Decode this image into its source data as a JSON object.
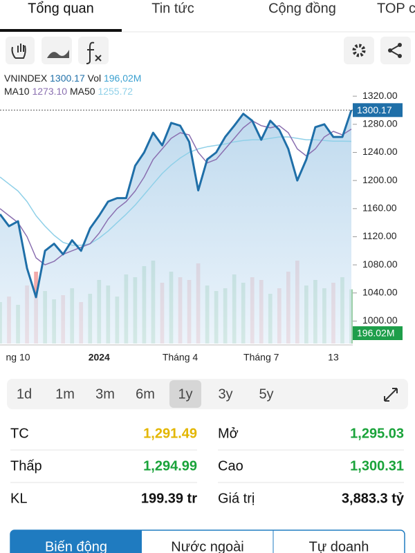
{
  "tabs": [
    "Tổng quan",
    "Tin tức",
    "Cộng đồng",
    "TOP c"
  ],
  "legend": {
    "symbol": "VNINDEX",
    "price": "1300.17",
    "vol_label": "Vol",
    "vol": "196,02M",
    "ma10_label": "MA10",
    "ma10": "1273.10",
    "ma50_label": "MA50",
    "ma50": "1255.72"
  },
  "chart_data": {
    "type": "line",
    "categories": [
      null,
      null,
      "ng 10",
      null,
      null,
      null,
      null,
      null,
      null,
      null,
      null,
      "2024",
      null,
      null,
      null,
      null,
      null,
      null,
      null,
      null,
      "Tháng 4",
      null,
      null,
      null,
      null,
      null,
      null,
      null,
      null,
      "Tháng 7",
      null,
      null,
      null,
      null,
      null,
      null,
      null,
      "13",
      null,
      null
    ],
    "series": [
      {
        "name": "VNINDEX",
        "color": "#1f6fa8",
        "values": [
          1152,
          1135,
          1142,
          1075,
          1034,
          1100,
          1110,
          1095,
          1115,
          1100,
          1132,
          1150,
          1170,
          1175,
          1175,
          1221,
          1240,
          1268,
          1250,
          1282,
          1278,
          1255,
          1186,
          1230,
          1240,
          1262,
          1278,
          1295,
          1285,
          1258,
          1285,
          1272,
          1245,
          1200,
          1230,
          1276,
          1280,
          1262,
          1262,
          1300.17
        ]
      },
      {
        "name": "MA10",
        "color": "#8a6fb0",
        "values": [
          1160,
          1150,
          1140,
          1120,
          1090,
          1080,
          1085,
          1095,
          1100,
          1105,
          1110,
          1125,
          1145,
          1160,
          1170,
          1185,
          1205,
          1230,
          1245,
          1260,
          1268,
          1265,
          1240,
          1225,
          1230,
          1245,
          1260,
          1275,
          1285,
          1278,
          1275,
          1278,
          1268,
          1245,
          1235,
          1245,
          1262,
          1270,
          1265,
          1273.1
        ]
      },
      {
        "name": "MA50",
        "color": "#8fd0e8",
        "values": [
          1205,
          1195,
          1185,
          1170,
          1150,
          1135,
          1122,
          1112,
          1108,
          1108,
          1110,
          1118,
          1128,
          1140,
          1152,
          1165,
          1180,
          1195,
          1210,
          1222,
          1232,
          1240,
          1245,
          1248,
          1250,
          1252,
          1255,
          1257,
          1258,
          1258,
          1260,
          1262,
          1262,
          1260,
          1258,
          1258,
          1257,
          1256,
          1256,
          1255.72
        ]
      }
    ],
    "volume": {
      "values": [
        150,
        170,
        140,
        210,
        260,
        190,
        160,
        175,
        200,
        150,
        180,
        230,
        210,
        170,
        250,
        240,
        280,
        300,
        220,
        260,
        240,
        230,
        290,
        210,
        190,
        200,
        250,
        220,
        240,
        230,
        180,
        200,
        260,
        300,
        210,
        230,
        200,
        220,
        240,
        196.02
      ],
      "up_color": "#9ccfa8",
      "down_color": "#f2aaaa",
      "label": "196.02M",
      "label_color": "#1e9e4a"
    },
    "ylim": [
      968,
      1329
    ],
    "yticks": [
      {
        "value": 1000,
        "label": "1000.00"
      },
      {
        "value": 1040,
        "label": "1040.00"
      },
      {
        "value": 1080,
        "label": "1080.00"
      },
      {
        "value": 1120,
        "label": "1120.00"
      },
      {
        "value": 1160,
        "label": "1160.00"
      },
      {
        "value": 1200,
        "label": "1200.00"
      },
      {
        "value": 1240,
        "label": "1240.00"
      },
      {
        "value": 1280,
        "label": "1280.00"
      },
      {
        "value": 1320,
        "label": "1320.00"
      }
    ]
  },
  "periods": [
    "1d",
    "1m",
    "3m",
    "6m",
    "1y",
    "3y",
    "5y"
  ],
  "selected_period": 4,
  "stats": [
    {
      "label": "TC",
      "value": "1,291.49",
      "color": "#e3b600"
    },
    {
      "label": "Mở",
      "value": "1,295.03",
      "color": "#1aa33a"
    },
    {
      "label": "Thấp",
      "value": "1,294.99",
      "color": "#1aa33a"
    },
    {
      "label": "Cao",
      "value": "1,300.31",
      "color": "#1aa33a"
    },
    {
      "label": "KL",
      "value": "199.39 tr",
      "color": "#111111"
    },
    {
      "label": "Giá trị",
      "value": "3,883.3 tỷ",
      "color": "#111111"
    }
  ],
  "bottom_tabs": [
    "Biến động",
    "Nước ngoài",
    "Tự doanh"
  ]
}
